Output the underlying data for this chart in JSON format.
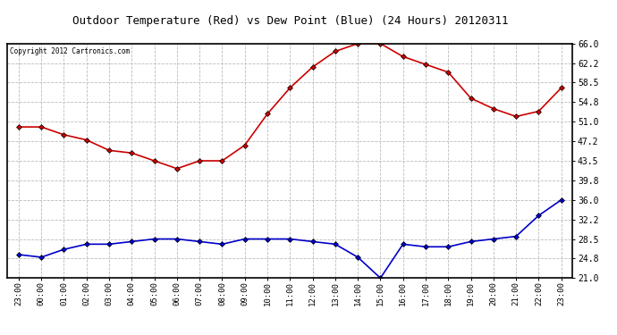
{
  "title": "Outdoor Temperature (Red) vs Dew Point (Blue) (24 Hours) 20120311",
  "copyright_text": "Copyright 2012 Cartronics.com",
  "x_labels": [
    "23:00",
    "00:00",
    "01:00",
    "02:00",
    "03:00",
    "04:00",
    "05:00",
    "06:00",
    "07:00",
    "08:00",
    "09:00",
    "10:00",
    "11:00",
    "12:00",
    "13:00",
    "14:00",
    "15:00",
    "16:00",
    "17:00",
    "18:00",
    "19:00",
    "20:00",
    "21:00",
    "22:00",
    "23:00"
  ],
  "temp_values": [
    50.0,
    50.0,
    48.5,
    47.5,
    45.5,
    45.0,
    43.5,
    42.0,
    43.5,
    43.5,
    46.5,
    52.5,
    57.5,
    61.5,
    64.5,
    66.0,
    66.0,
    63.5,
    62.0,
    60.5,
    55.5,
    53.5,
    52.0,
    53.0,
    57.5
  ],
  "dew_values": [
    25.5,
    25.0,
    26.5,
    27.5,
    27.5,
    28.0,
    28.5,
    28.5,
    28.0,
    27.5,
    28.5,
    28.5,
    28.5,
    28.0,
    27.5,
    25.0,
    21.0,
    27.5,
    27.0,
    27.0,
    28.0,
    28.5,
    29.0,
    33.0,
    36.0
  ],
  "temp_color": "#cc0000",
  "dew_color": "#0000cc",
  "bg_color": "#ffffff",
  "plot_bg_color": "#ffffff",
  "grid_color": "#bbbbbb",
  "y_ticks": [
    21.0,
    24.8,
    28.5,
    32.2,
    36.0,
    39.8,
    43.5,
    47.2,
    51.0,
    54.8,
    58.5,
    62.2,
    66.0
  ],
  "y_min": 21.0,
  "y_max": 66.0,
  "marker": "D",
  "marker_size": 3,
  "line_width": 1.2
}
